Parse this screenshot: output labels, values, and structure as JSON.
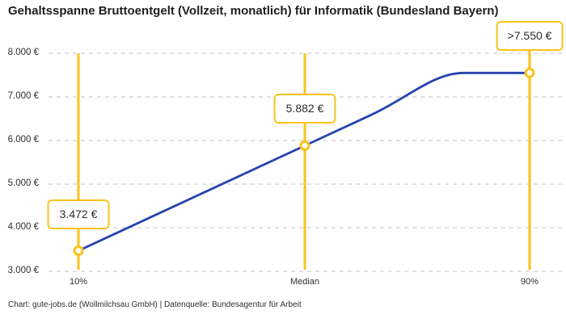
{
  "title": "Gehaltsspanne Bruttoentgelt (Vollzeit, monatlich) für Informatik (Bundesland Bayern)",
  "footer": "Chart: gute-jobs.de (Wollmilchsau GmbH) | Datenquelle: Bundesagentur für Arbeit",
  "colors": {
    "accent-yellow": "#FBC21A",
    "line-blue": "#2743AE",
    "grid": "#CFCFCF",
    "text-dark": "#1E1E1E",
    "text-mid": "#2E2E2E"
  },
  "chart_data": {
    "type": "line",
    "title": "Gehaltsspanne Bruttoentgelt (Vollzeit, monatlich) für Informatik (Bundesland Bayern)",
    "categories": [
      "10%",
      "Median",
      "90%"
    ],
    "values": [
      3472,
      5882,
      7550
    ],
    "value_labels": [
      "3.472 €",
      "5.882 €",
      ">7.550 €"
    ],
    "ylim": [
      3000,
      8000
    ],
    "y_ticks": [
      "3.000 €",
      "4.000 €",
      "5.000 €",
      "6.000 €",
      "7.000 €",
      "8.000 €"
    ],
    "xlabel": "",
    "ylabel": "",
    "grid": "horizontal-dashed",
    "legend": false,
    "marker_style": "open-circle-yellow-on-blue-line",
    "annotations": [
      "vertical yellow percentile lines at 10%, Median, 90%"
    ],
    "source": "Chart: gute-jobs.de (Wollmilchsau GmbH) | Datenquelle: Bundesagentur für Arbeit"
  }
}
